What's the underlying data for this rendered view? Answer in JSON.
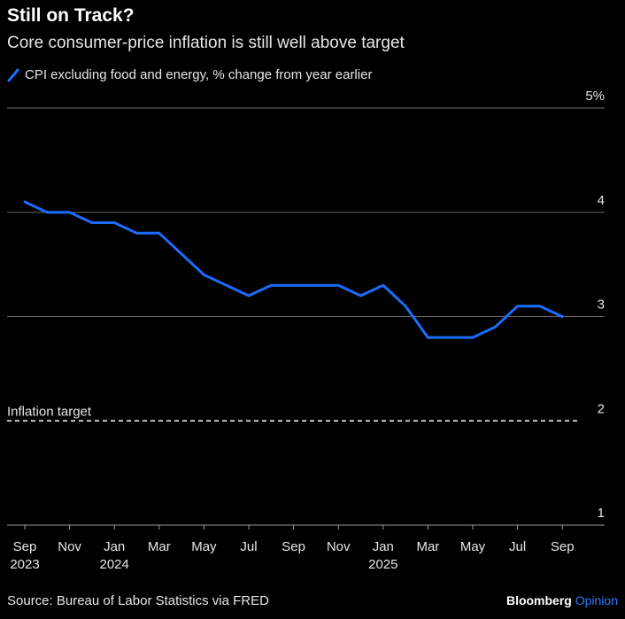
{
  "title": "Still on Track?",
  "subtitle": "Core consumer-price inflation is still well above target",
  "legend": {
    "label": "CPI excluding food and energy, % change from year earlier",
    "color": "#1a6dff"
  },
  "source": "Source: Bureau of Labor Statistics via FRED",
  "brand": {
    "main": "Bloomberg",
    "sub": "Opinion"
  },
  "chart_data": {
    "type": "line",
    "y_ticks": [
      {
        "value": 5,
        "label": "5%"
      },
      {
        "value": 4,
        "label": "4"
      },
      {
        "value": 3,
        "label": "3"
      },
      {
        "value": 2,
        "label": "2"
      },
      {
        "value": 1,
        "label": "1"
      }
    ],
    "ylim": [
      1,
      5
    ],
    "x_ticks": [
      {
        "index": 0,
        "month": "Sep",
        "year": "2023"
      },
      {
        "index": 2,
        "month": "Nov",
        "year": ""
      },
      {
        "index": 4,
        "month": "Jan",
        "year": "2024"
      },
      {
        "index": 6,
        "month": "Mar",
        "year": ""
      },
      {
        "index": 8,
        "month": "May",
        "year": ""
      },
      {
        "index": 10,
        "month": "Jul",
        "year": ""
      },
      {
        "index": 12,
        "month": "Sep",
        "year": ""
      },
      {
        "index": 14,
        "month": "Nov",
        "year": ""
      },
      {
        "index": 16,
        "month": "Jan",
        "year": "2025"
      },
      {
        "index": 18,
        "month": "Mar",
        "year": ""
      },
      {
        "index": 20,
        "month": "May",
        "year": ""
      },
      {
        "index": 22,
        "month": "Jul",
        "year": ""
      },
      {
        "index": 24,
        "month": "Sep",
        "year": ""
      }
    ],
    "series": [
      {
        "name": "CPI excluding food and energy, % change from year earlier",
        "color": "#1a6dff",
        "x": [
          "2023-09",
          "2023-10",
          "2023-11",
          "2023-12",
          "2024-01",
          "2024-02",
          "2024-03",
          "2024-04",
          "2024-05",
          "2024-06",
          "2024-07",
          "2024-08",
          "2024-09",
          "2024-10",
          "2024-11",
          "2024-12",
          "2025-01",
          "2025-02",
          "2025-03",
          "2025-04",
          "2025-05",
          "2025-06",
          "2025-07",
          "2025-08",
          "2025-09"
        ],
        "values": [
          4.1,
          4.0,
          4.0,
          3.9,
          3.9,
          3.8,
          3.8,
          3.6,
          3.4,
          3.3,
          3.2,
          3.3,
          3.3,
          3.3,
          3.3,
          3.2,
          3.3,
          3.1,
          2.8,
          2.8,
          2.8,
          2.9,
          3.1,
          3.1,
          3.0
        ]
      }
    ],
    "reference_line": {
      "value": 2,
      "label": "Inflation target",
      "style": "dashed",
      "color": "#ffffff"
    },
    "grid": true
  }
}
